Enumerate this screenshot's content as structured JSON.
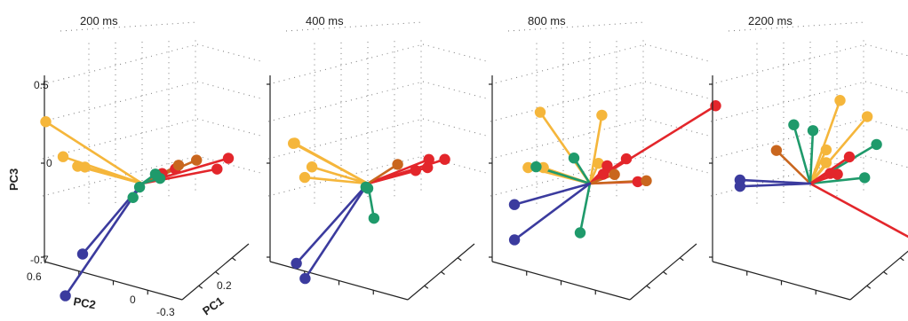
{
  "chart_data": {
    "type": "scatter",
    "variant": "3d-vector-plot",
    "axes": {
      "xlabel": "PC1",
      "ylabel": "PC2",
      "zlabel": "PC3",
      "pc1_ticks": [
        "0.2",
        "-0.3"
      ],
      "pc2_ticks": [
        "0.6",
        "0"
      ],
      "pc3_ticks": [
        "0.5",
        "0",
        "-0.7"
      ],
      "grid": true
    },
    "colors": {
      "yellow": "#f5b63b",
      "red": "#e3262b",
      "orange": "#c9661e",
      "green": "#1f9a6b",
      "blue": "#3b3b9e"
    },
    "panels": [
      {
        "title": "200 ms",
        "origin": [
          0.0,
          0.0,
          0.0
        ],
        "endpoints": [
          {
            "color": "yellow",
            "pc1": -0.05,
            "pc2": 0.55,
            "pc3": 0.45
          },
          {
            "color": "yellow",
            "pc1": -0.05,
            "pc2": 0.42,
            "pc3": 0.22
          },
          {
            "color": "yellow",
            "pc1": -0.03,
            "pc2": 0.38,
            "pc3": 0.15
          },
          {
            "color": "yellow",
            "pc1": -0.02,
            "pc2": 0.36,
            "pc3": 0.14
          },
          {
            "color": "red",
            "pc1": 0.1,
            "pc2": -0.3,
            "pc3": 0.1
          },
          {
            "color": "red",
            "pc1": 0.09,
            "pc2": -0.25,
            "pc3": 0.04
          },
          {
            "color": "red",
            "pc1": 0.02,
            "pc2": -0.18,
            "pc3": 0.07
          },
          {
            "color": "red",
            "pc1": 0.0,
            "pc2": -0.15,
            "pc3": 0.05
          },
          {
            "color": "orange",
            "pc1": 0.06,
            "pc2": -0.2,
            "pc3": 0.11
          },
          {
            "color": "orange",
            "pc1": 0.05,
            "pc2": -0.1,
            "pc3": 0.09
          },
          {
            "color": "green",
            "pc1": 0.02,
            "pc2": -0.03,
            "pc3": 0.05
          },
          {
            "color": "green",
            "pc1": 0.03,
            "pc2": -0.03,
            "pc3": 0.02
          },
          {
            "color": "green",
            "pc1": -0.02,
            "pc2": -0.05,
            "pc3": -0.02
          },
          {
            "color": "green",
            "pc1": -0.04,
            "pc2": -0.07,
            "pc3": -0.08
          },
          {
            "color": "blue",
            "pc1": -0.1,
            "pc2": 0.1,
            "pc3": -0.4
          },
          {
            "color": "blue",
            "pc1": -0.12,
            "pc2": 0.16,
            "pc3": -0.65
          }
        ]
      },
      {
        "title": "400 ms",
        "origin": [
          0.0,
          0.0,
          0.0
        ],
        "endpoints": [
          {
            "color": "yellow",
            "pc1": -0.02,
            "pc2": 0.48,
            "pc3": 0.3
          },
          {
            "color": "yellow",
            "pc1": -0.04,
            "pc2": 0.42,
            "pc3": 0.3
          },
          {
            "color": "yellow",
            "pc1": -0.02,
            "pc2": 0.35,
            "pc3": 0.14
          },
          {
            "color": "yellow",
            "pc1": -0.05,
            "pc2": 0.3,
            "pc3": 0.08
          },
          {
            "color": "red",
            "pc1": 0.08,
            "pc2": -0.3,
            "pc3": 0.1
          },
          {
            "color": "red",
            "pc1": 0.06,
            "pc2": -0.25,
            "pc3": 0.11
          },
          {
            "color": "red",
            "pc1": 0.06,
            "pc2": -0.24,
            "pc3": 0.06
          },
          {
            "color": "red",
            "pc1": 0.04,
            "pc2": -0.22,
            "pc3": 0.05
          },
          {
            "color": "orange",
            "pc1": 0.03,
            "pc2": -0.12,
            "pc3": 0.1
          },
          {
            "color": "green",
            "pc1": -0.01,
            "pc2": -0.02,
            "pc3": -0.02
          },
          {
            "color": "green",
            "pc1": 0.0,
            "pc2": 0.0,
            "pc3": -0.03
          },
          {
            "color": "green",
            "pc1": -0.03,
            "pc2": -0.15,
            "pc3": -0.22
          },
          {
            "color": "blue",
            "pc1": -0.12,
            "pc2": 0.12,
            "pc3": -0.45
          },
          {
            "color": "blue",
            "pc1": -0.13,
            "pc2": 0.02,
            "pc3": -0.55
          }
        ]
      },
      {
        "title": "800 ms",
        "origin": [
          0.0,
          0.0,
          0.0
        ],
        "endpoints": [
          {
            "color": "yellow",
            "pc1": -0.05,
            "pc2": 0.2,
            "pc3": 0.48
          },
          {
            "color": "yellow",
            "pc1": 0.02,
            "pc2": -0.02,
            "pc3": 0.42
          },
          {
            "color": "yellow",
            "pc1": -0.03,
            "pc2": 0.36,
            "pc3": 0.14
          },
          {
            "color": "yellow",
            "pc1": -0.02,
            "pc2": 0.28,
            "pc3": 0.13
          },
          {
            "color": "yellow",
            "pc1": 0.03,
            "pc2": 0.04,
            "pc3": 0.12
          },
          {
            "color": "green",
            "pc1": -0.03,
            "pc2": 0.3,
            "pc3": 0.14
          },
          {
            "color": "green",
            "pc1": 0.0,
            "pc2": 0.12,
            "pc3": 0.17
          },
          {
            "color": "green",
            "pc1": -0.05,
            "pc2": -0.1,
            "pc3": -0.3
          },
          {
            "color": "red",
            "pc1": 0.2,
            "pc2": -0.25,
            "pc3": 0.4
          },
          {
            "color": "red",
            "pc1": 0.05,
            "pc2": -0.1,
            "pc3": 0.13
          },
          {
            "color": "red",
            "pc1": 0.02,
            "pc2": -0.06,
            "pc3": 0.1
          },
          {
            "color": "red",
            "pc1": 0.0,
            "pc2": -0.1,
            "pc3": 0.05
          },
          {
            "color": "red",
            "pc1": 0.04,
            "pc2": -0.22,
            "pc3": -0.02
          },
          {
            "color": "orange",
            "pc1": 0.05,
            "pc2": -0.25,
            "pc3": -0.02
          },
          {
            "color": "orange",
            "pc1": 0.03,
            "pc2": -0.08,
            "pc3": 0.04
          },
          {
            "color": "blue",
            "pc1": -0.1,
            "pc2": 0.22,
            "pc3": -0.08
          },
          {
            "color": "blue",
            "pc1": -0.12,
            "pc2": 0.15,
            "pc3": -0.3
          }
        ]
      },
      {
        "title": "2200 ms",
        "origin": [
          0.0,
          0.0,
          0.0
        ],
        "endpoints": [
          {
            "color": "yellow",
            "pc1": 0.05,
            "pc2": -0.05,
            "pc3": 0.5
          },
          {
            "color": "yellow",
            "pc1": 0.08,
            "pc2": -0.15,
            "pc3": 0.38
          },
          {
            "color": "yellow",
            "pc1": 0.02,
            "pc2": -0.05,
            "pc3": 0.2
          },
          {
            "color": "yellow",
            "pc1": 0.02,
            "pc2": -0.05,
            "pc3": 0.12
          },
          {
            "color": "orange",
            "pc1": -0.03,
            "pc2": 0.15,
            "pc3": 0.23
          },
          {
            "color": "green",
            "pc1": -0.03,
            "pc2": 0.02,
            "pc3": 0.38
          },
          {
            "color": "green",
            "pc1": 0.0,
            "pc2": -0.02,
            "pc3": 0.33
          },
          {
            "color": "green",
            "pc1": 0.08,
            "pc2": -0.22,
            "pc3": 0.2
          },
          {
            "color": "green",
            "pc1": 0.06,
            "pc2": -0.2,
            "pc3": 0.0
          },
          {
            "color": "red",
            "pc1": 0.05,
            "pc2": -0.12,
            "pc3": 0.14
          },
          {
            "color": "red",
            "pc1": 0.03,
            "pc2": -0.1,
            "pc3": 0.04
          },
          {
            "color": "red",
            "pc1": 0.02,
            "pc2": -0.08,
            "pc3": 0.05
          },
          {
            "color": "red",
            "pc1": 0.18,
            "pc2": -0.2,
            "pc3": -0.45
          },
          {
            "color": "blue",
            "pc1": -0.08,
            "pc2": 0.25,
            "pc3": 0.07
          },
          {
            "color": "blue",
            "pc1": -0.08,
            "pc2": 0.25,
            "pc3": 0.03
          }
        ]
      }
    ]
  }
}
